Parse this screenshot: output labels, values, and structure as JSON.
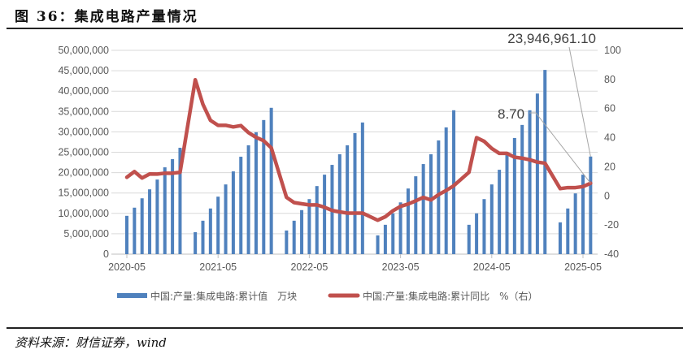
{
  "title": "图 36：集成电路产量情况",
  "source": "资料来源：财信证券，wind",
  "chart_data": {
    "type": "bar+line",
    "title": "集成电路产量情况",
    "months": [
      "2020-05",
      "2020-06",
      "2020-07",
      "2020-08",
      "2020-09",
      "2020-10",
      "2020-11",
      "2020-12",
      "2021-02",
      "2021-03",
      "2021-04",
      "2021-05",
      "2021-06",
      "2021-07",
      "2021-08",
      "2021-09",
      "2021-10",
      "2021-11",
      "2021-12",
      "2022-02",
      "2022-03",
      "2022-04",
      "2022-05",
      "2022-06",
      "2022-07",
      "2022-08",
      "2022-09",
      "2022-10",
      "2022-11",
      "2022-12",
      "2023-02",
      "2023-03",
      "2023-04",
      "2023-05",
      "2023-06",
      "2023-07",
      "2023-08",
      "2023-09",
      "2023-10",
      "2023-11",
      "2023-12",
      "2024-02",
      "2024-03",
      "2024-04",
      "2024-05",
      "2024-06",
      "2024-07",
      "2024-08",
      "2024-09",
      "2024-10",
      "2024-11",
      "2024-12",
      "2025-02",
      "2025-03",
      "2025-04",
      "2025-05",
      "2025-06"
    ],
    "series": [
      {
        "name": "中国:产量:集成电路:累计值　万块",
        "type": "bar",
        "axis": "left",
        "color": "#4f81bd",
        "values": [
          9400000,
          11400000,
          13700000,
          15900000,
          18300000,
          21300000,
          23300000,
          26100000,
          5400000,
          8200000,
          11200000,
          14100000,
          17100000,
          20300000,
          23900000,
          26700000,
          29900000,
          32900000,
          35900000,
          5800000,
          8200000,
          10800000,
          13500000,
          16700000,
          19500000,
          21900000,
          24500000,
          26700000,
          29700000,
          32300000,
          4600000,
          7200000,
          10000000,
          12700000,
          16100000,
          19100000,
          22100000,
          24500000,
          27900000,
          31100000,
          35300000,
          7200000,
          10000000,
          13500000,
          17100000,
          20700000,
          24300000,
          28500000,
          31700000,
          35300000,
          39400000,
          45200000,
          7800000,
          11200000,
          14900000,
          19500000,
          23946961.1
        ]
      },
      {
        "name": "中国:产量:集成电路:累计同比　%（右）",
        "type": "line",
        "axis": "right",
        "color": "#c0504d",
        "values": [
          12.8,
          16.7,
          12.3,
          15.1,
          15.0,
          15.6,
          15.6,
          16.2,
          79.8,
          63.0,
          51.9,
          48.5,
          48.5,
          47.4,
          48.3,
          43.5,
          40.2,
          37.9,
          33.0,
          -1.0,
          -4.6,
          -5.4,
          -6.2,
          -6.2,
          -7.8,
          -10.0,
          -11.0,
          -11.8,
          -11.8,
          -11.8,
          -16.7,
          -14.3,
          -10.2,
          -7.2,
          -5.6,
          -3.4,
          -1.0,
          -2.8,
          0.9,
          3.7,
          7.0,
          16.2,
          40.0,
          37.5,
          32.6,
          29.2,
          29.2,
          26.6,
          25.9,
          24.8,
          23.2,
          22.5,
          5.0,
          5.7,
          5.7,
          6.4,
          8.7
        ]
      }
    ],
    "x_tick_labels": [
      "2020-05",
      "2021-05",
      "2022-05",
      "2023-05",
      "2024-05",
      "2025-05"
    ],
    "left_axis": {
      "ylim": [
        0,
        50000000
      ],
      "ticks": [
        "0",
        "5,000,000",
        "10,000,000",
        "15,000,000",
        "20,000,000",
        "25,000,000",
        "30,000,000",
        "35,000,000",
        "40,000,000",
        "45,000,000",
        "50,000,000"
      ]
    },
    "right_axis": {
      "ylim": [
        -40,
        100
      ],
      "ticks": [
        "-40",
        "-20",
        "0",
        "20",
        "40",
        "60",
        "80",
        "100"
      ]
    },
    "annotations": {
      "bar_last": "23,946,961.10",
      "line_last": "8.70"
    },
    "grid": true,
    "legend_position": "bottom"
  }
}
